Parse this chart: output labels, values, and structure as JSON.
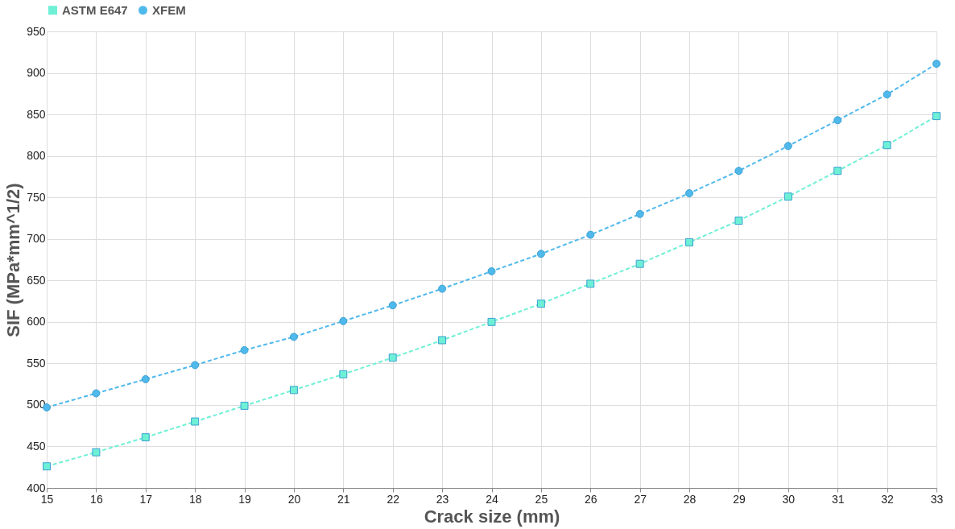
{
  "chart_data": {
    "type": "line",
    "xlabel": "Crack size (mm)",
    "ylabel": "SIF (MPa*mm^1/2)",
    "x": [
      15,
      16,
      17,
      18,
      19,
      20,
      21,
      22,
      23,
      24,
      25,
      26,
      27,
      28,
      29,
      30,
      31,
      32,
      33
    ],
    "series": [
      {
        "name": "ASTM E647",
        "color": "#6ef0d6",
        "marker": "square",
        "values": [
          426,
          443,
          461,
          480,
          499,
          518,
          537,
          557,
          578,
          600,
          622,
          646,
          670,
          696,
          722,
          751,
          782,
          813,
          848
        ]
      },
      {
        "name": "XFEM",
        "color": "#4fb9ec",
        "marker": "circle",
        "values": [
          497,
          514,
          531,
          548,
          566,
          582,
          601,
          620,
          640,
          661,
          682,
          705,
          730,
          755,
          782,
          812,
          843,
          874,
          911
        ]
      }
    ],
    "xlim": [
      15,
      33
    ],
    "xticks": [
      15,
      16,
      17,
      18,
      19,
      20,
      21,
      22,
      23,
      24,
      25,
      26,
      27,
      28,
      29,
      30,
      31,
      32,
      33
    ],
    "ylim": [
      400,
      950
    ],
    "yticks": [
      400,
      450,
      500,
      550,
      600,
      650,
      700,
      750,
      800,
      850,
      900,
      950
    ],
    "grid": true,
    "legend": "top",
    "line_style": "dashed"
  }
}
